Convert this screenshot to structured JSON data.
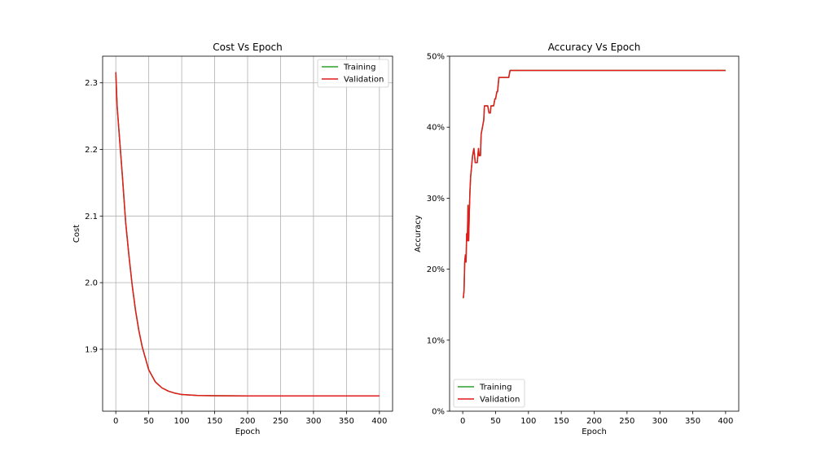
{
  "colors": {
    "training": "#2ca02c",
    "validation": "#e41a1c",
    "grid": "#b0b0b0"
  },
  "chart_data": [
    {
      "type": "line",
      "title": "Cost Vs Epoch",
      "xlabel": "Epoch",
      "ylabel": "Cost",
      "xlim": [
        -20,
        420
      ],
      "ylim": [
        1.807,
        2.34
      ],
      "xticks": [
        0,
        50,
        100,
        150,
        200,
        250,
        300,
        350,
        400
      ],
      "yticks": [
        1.9,
        2.0,
        2.1,
        2.2,
        2.3
      ],
      "ytick_labels": [
        "1.9",
        "2.0",
        "2.1",
        "2.2",
        "2.3"
      ],
      "grid": true,
      "legend": "top-right",
      "series": [
        {
          "name": "Training",
          "color": "#2ca02c",
          "x": [
            0,
            2,
            5,
            10,
            15,
            20,
            25,
            30,
            35,
            40,
            50,
            60,
            70,
            80,
            90,
            100,
            125,
            150,
            200,
            300,
            400
          ],
          "y": [
            2.316,
            2.265,
            2.225,
            2.16,
            2.09,
            2.04,
            1.995,
            1.958,
            1.928,
            1.904,
            1.869,
            1.851,
            1.842,
            1.837,
            1.834,
            1.832,
            1.8305,
            1.8302,
            1.83,
            1.83,
            1.83
          ]
        },
        {
          "name": "Validation",
          "color": "#e41a1c",
          "x": [
            0,
            2,
            5,
            10,
            15,
            20,
            25,
            30,
            35,
            40,
            50,
            60,
            70,
            80,
            90,
            100,
            125,
            150,
            200,
            300,
            400
          ],
          "y": [
            2.316,
            2.265,
            2.225,
            2.16,
            2.09,
            2.04,
            1.995,
            1.958,
            1.928,
            1.904,
            1.869,
            1.851,
            1.842,
            1.837,
            1.834,
            1.832,
            1.8305,
            1.8302,
            1.83,
            1.83,
            1.83
          ]
        }
      ]
    },
    {
      "type": "line",
      "title": "Accuracy Vs Epoch",
      "xlabel": "Epoch",
      "ylabel": "Accuracy",
      "xlim": [
        -20,
        420
      ],
      "ylim": [
        0,
        0.5
      ],
      "xticks": [
        0,
        50,
        100,
        150,
        200,
        250,
        300,
        350,
        400
      ],
      "yticks": [
        0,
        0.1,
        0.2,
        0.3,
        0.4,
        0.5
      ],
      "ytick_labels": [
        "0%",
        "10%",
        "20%",
        "30%",
        "40%",
        "50%"
      ],
      "grid": false,
      "legend": "bottom-left",
      "series": [
        {
          "name": "Training",
          "color": "#2ca02c",
          "x": [
            0,
            1,
            2,
            3,
            4,
            5,
            6,
            7,
            8,
            9,
            10,
            11,
            12,
            13,
            15,
            17,
            19,
            20,
            22,
            24,
            25,
            27,
            28,
            30,
            32,
            33,
            35,
            38,
            40,
            42,
            43,
            45,
            47,
            49,
            50,
            52,
            53,
            55,
            57,
            60,
            65,
            70,
            72,
            75,
            80,
            100,
            200,
            300,
            400
          ],
          "y": [
            0.16,
            0.16,
            0.17,
            0.21,
            0.22,
            0.21,
            0.25,
            0.24,
            0.29,
            0.24,
            0.28,
            0.31,
            0.33,
            0.34,
            0.36,
            0.37,
            0.35,
            0.35,
            0.35,
            0.37,
            0.36,
            0.36,
            0.39,
            0.4,
            0.41,
            0.43,
            0.43,
            0.43,
            0.42,
            0.42,
            0.43,
            0.43,
            0.43,
            0.44,
            0.44,
            0.45,
            0.45,
            0.47,
            0.47,
            0.47,
            0.47,
            0.47,
            0.48,
            0.48,
            0.48,
            0.48,
            0.48,
            0.48,
            0.48
          ]
        },
        {
          "name": "Validation",
          "color": "#e41a1c",
          "x": [
            0,
            1,
            2,
            3,
            4,
            5,
            6,
            7,
            8,
            9,
            10,
            11,
            12,
            13,
            15,
            17,
            19,
            20,
            22,
            24,
            25,
            27,
            28,
            30,
            32,
            33,
            35,
            38,
            40,
            42,
            43,
            45,
            47,
            49,
            50,
            52,
            53,
            55,
            57,
            60,
            65,
            70,
            72,
            75,
            80,
            100,
            200,
            300,
            400
          ],
          "y": [
            0.16,
            0.16,
            0.17,
            0.21,
            0.22,
            0.21,
            0.25,
            0.24,
            0.29,
            0.24,
            0.28,
            0.31,
            0.33,
            0.34,
            0.36,
            0.37,
            0.35,
            0.35,
            0.35,
            0.37,
            0.36,
            0.36,
            0.39,
            0.4,
            0.41,
            0.43,
            0.43,
            0.43,
            0.42,
            0.42,
            0.43,
            0.43,
            0.43,
            0.44,
            0.44,
            0.45,
            0.45,
            0.47,
            0.47,
            0.47,
            0.47,
            0.47,
            0.48,
            0.48,
            0.48,
            0.48,
            0.48,
            0.48,
            0.48
          ]
        }
      ]
    }
  ]
}
